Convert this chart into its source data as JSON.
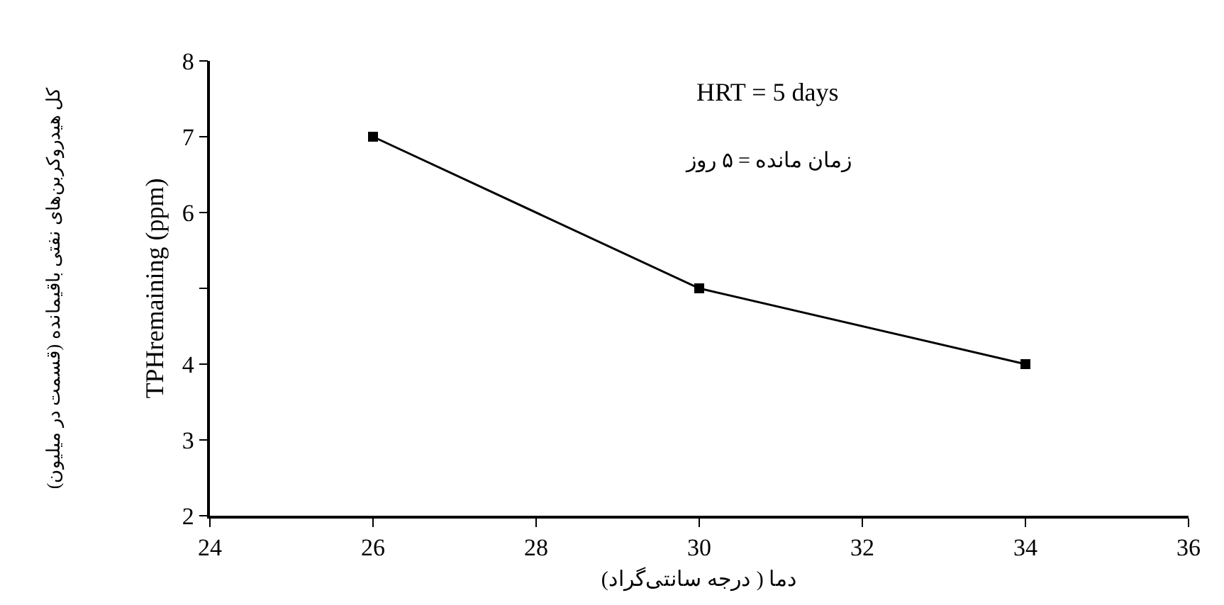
{
  "chart_data": {
    "type": "line",
    "xlabel": "دما ( درجه سانتی‌گراد)",
    "ylabel": "TPHremaining (ppm)",
    "annotations": [
      "HRT = 5 days",
      "زمان مانده = ۵ روز",
      "کل هیدروکربن‌های نفتی باقیمانده (قسمت در میلیون)"
    ],
    "x": [
      26,
      30,
      34
    ],
    "series": [
      {
        "color": "#000000",
        "values": [
          7.0,
          5.0,
          4.0
        ]
      }
    ],
    "xlim": [
      24,
      36
    ],
    "xticks": [
      24,
      26,
      28,
      30,
      32,
      34,
      36
    ],
    "ylim": [
      2,
      8
    ],
    "yticks": [
      2,
      3,
      4,
      {
        "value": 5,
        "label": null
      },
      6,
      7,
      8
    ],
    "grid": false,
    "marker": "square",
    "line_style": "solid"
  }
}
